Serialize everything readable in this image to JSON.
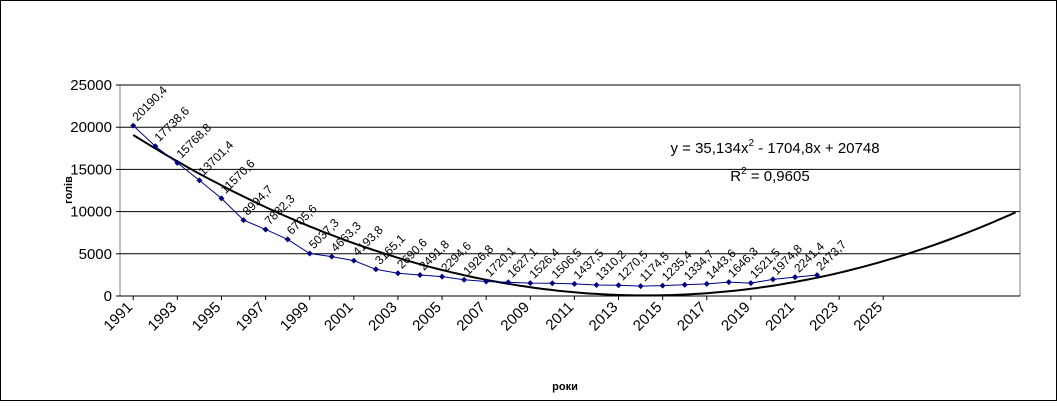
{
  "chart_data": {
    "type": "line",
    "y_label": "голів",
    "x_label": "роки",
    "x": [
      1991,
      1992,
      1993,
      1994,
      1995,
      1996,
      1997,
      1998,
      1999,
      2000,
      2001,
      2002,
      2003,
      2004,
      2005,
      2006,
      2007,
      2008,
      2009,
      2010,
      2011,
      2012,
      2013,
      2014,
      2015,
      2016,
      2017,
      2018,
      2019,
      2020,
      2021,
      2022
    ],
    "series": [
      {
        "color": "#000080",
        "values": [
          20190.4,
          17738.6,
          15768.8,
          13701.4,
          11570.6,
          8994.7,
          7882.3,
          6705.6,
          5037.3,
          4663.3,
          4193.8,
          3165.1,
          2690.6,
          2491.8,
          2294.6,
          1926.8,
          1720.1,
          1627.1,
          1526.4,
          1506.5,
          1437.5,
          1310.2,
          1270.5,
          1174.5,
          1235.4,
          1334.7,
          1443.6,
          1646.3,
          1521.5,
          1974.8,
          2241.4,
          2473.7
        ],
        "value_labels": [
          "20190,4",
          "17738,6",
          "15768,8",
          "13701,4",
          "11570,6",
          "8994,7",
          "7882,3",
          "6705,6",
          "5037,3",
          "4663,3",
          "4193,8",
          "3165,1",
          "2690,6",
          "2491,8",
          "2294,6",
          "1926,8",
          "1720,1",
          "1627,1",
          "1526,4",
          "1506,5",
          "1437,5",
          "1310,2",
          "1270,5",
          "1174,5",
          "1235,4",
          "1334,7",
          "1443,6",
          "1646,3",
          "1521,5",
          "1974,8",
          "2241,4",
          "2473,7"
        ]
      }
    ],
    "trendline": {
      "color": "#000000",
      "coefficients": [
        35.134,
        -1704.8,
        20748
      ],
      "equation": {
        "lead": "y = 35,134x",
        "power": "2",
        "rest": " - 1704,8x + 20748"
      },
      "r_squared": {
        "lead": "R",
        "power": "2",
        "rest": " = 0,9605"
      }
    },
    "xlim": [
      1990.4,
      2031.2
    ],
    "ylim": [
      0,
      25000
    ],
    "xticks": [
      1991,
      1993,
      1995,
      1997,
      1999,
      2001,
      2003,
      2005,
      2007,
      2009,
      2011,
      2013,
      2015,
      2017,
      2019,
      2021,
      2023,
      2025
    ],
    "yticks": [
      0,
      5000,
      10000,
      15000,
      20000,
      25000
    ],
    "grid": true
  }
}
